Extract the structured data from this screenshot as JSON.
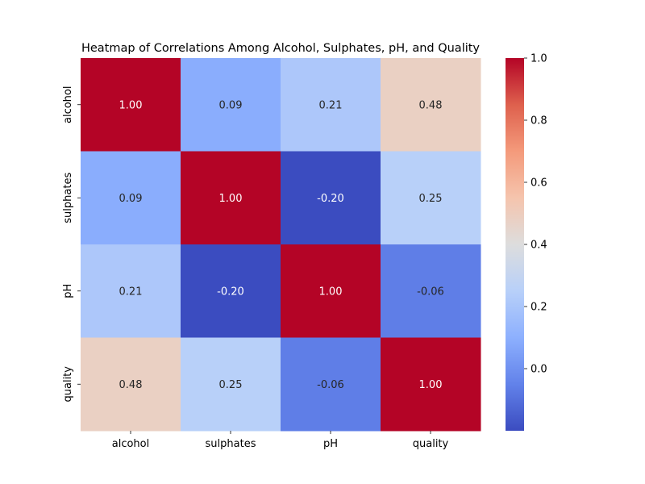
{
  "chart_data": {
    "type": "heatmap",
    "title": "Heatmap of Correlations Among Alcohol, Sulphates, pH, and Quality",
    "x_labels": [
      "alcohol",
      "sulphates",
      "pH",
      "quality"
    ],
    "y_labels": [
      "alcohol",
      "sulphates",
      "pH",
      "quality"
    ],
    "values": [
      [
        1.0,
        0.09,
        0.21,
        0.48
      ],
      [
        0.09,
        1.0,
        -0.2,
        0.25
      ],
      [
        0.21,
        -0.2,
        1.0,
        -0.06
      ],
      [
        0.48,
        0.25,
        -0.06,
        1.0
      ]
    ],
    "annotation_format": "0.00",
    "colormap": "coolwarm",
    "colorbar": {
      "range": [
        -0.2,
        1.0
      ],
      "ticks": [
        0.0,
        0.2,
        0.4,
        0.6,
        0.8,
        1.0
      ],
      "tick_labels": [
        "0.0",
        "0.2",
        "0.4",
        "0.6",
        "0.8",
        "1.0"
      ]
    },
    "grid": false
  }
}
